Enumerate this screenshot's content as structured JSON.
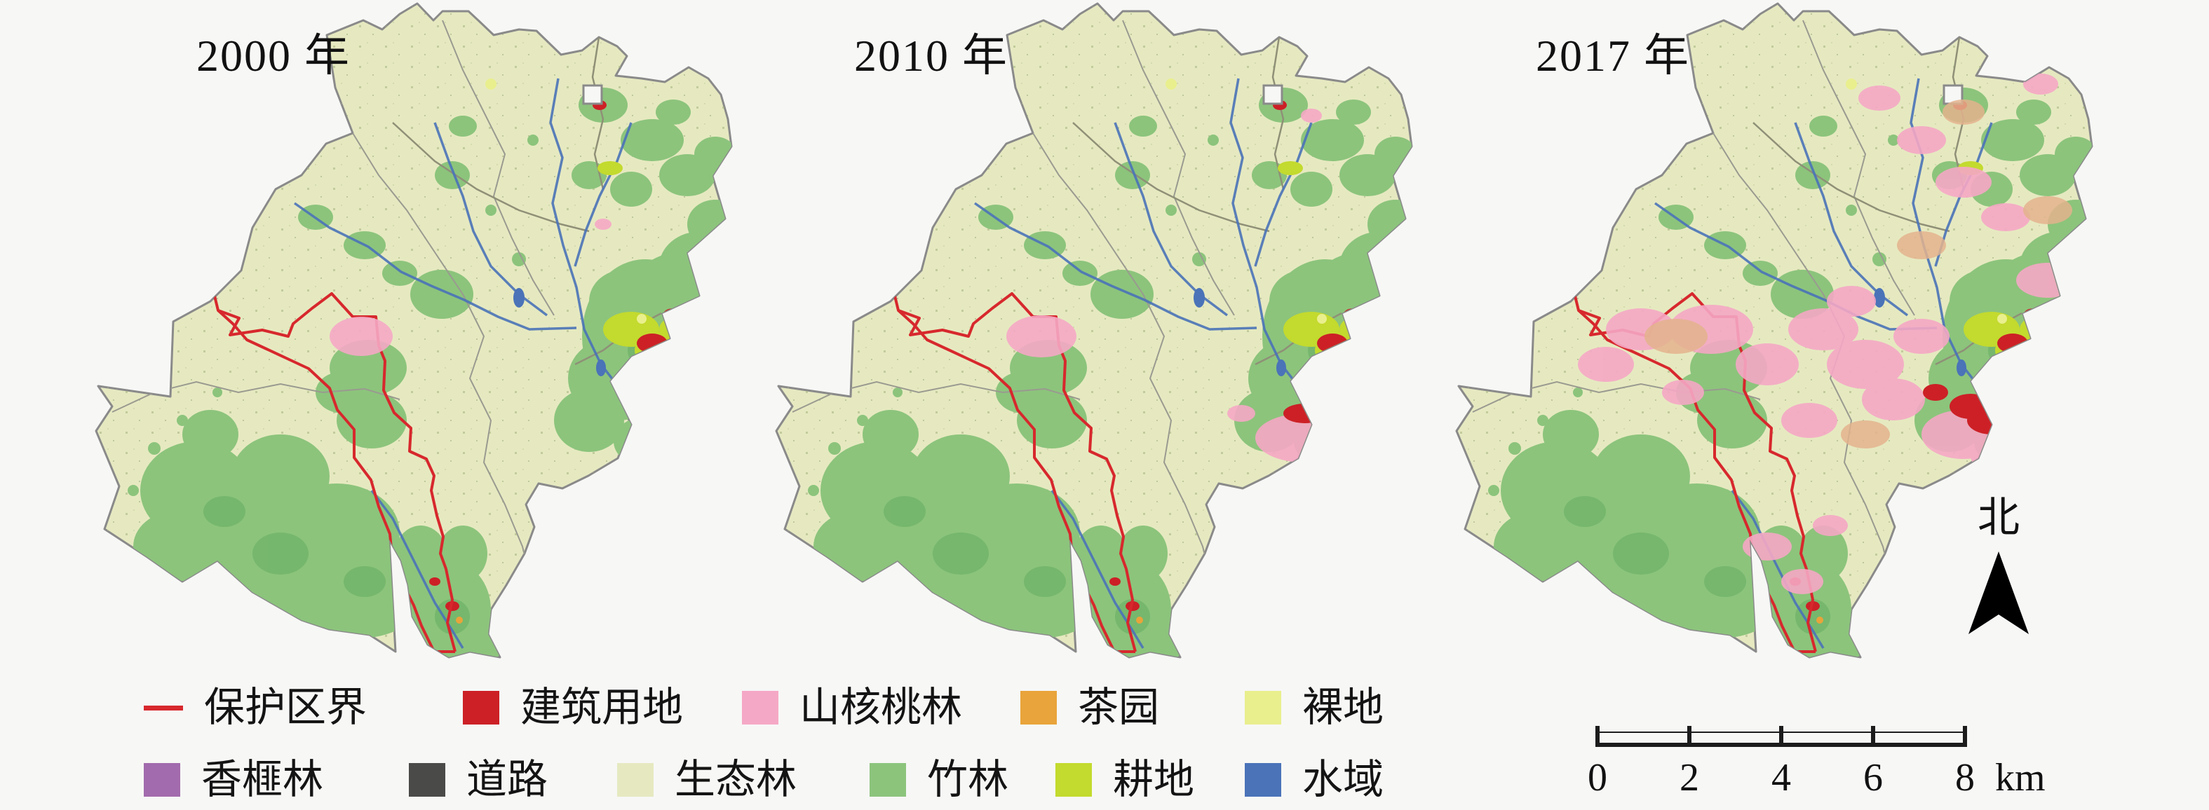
{
  "figure": {
    "kind": "land-use change maps, three dates side by side",
    "background": "#f7f7f6"
  },
  "maps": [
    {
      "year_label": "2000 年"
    },
    {
      "year_label": "2010 年"
    },
    {
      "year_label": "2017 年"
    }
  ],
  "legend": {
    "rows": [
      {
        "items": [
          {
            "label": "保护区界",
            "color": "#d7282d",
            "type": "line"
          },
          {
            "label": "建筑用地",
            "color": "#cc2026",
            "type": "fill"
          },
          {
            "label": "山核桃林",
            "color": "#f5a8c5",
            "type": "fill"
          },
          {
            "label": "茶园",
            "color": "#e9a43b",
            "type": "fill"
          },
          {
            "label": "裸地",
            "color": "#e9ef8d",
            "type": "fill"
          }
        ]
      },
      {
        "items": [
          {
            "label": "香榧林",
            "color": "#a26bad",
            "type": "fill"
          },
          {
            "label": "道路",
            "color": "#4a4a48",
            "type": "fill"
          },
          {
            "label": "生态林",
            "color": "#e6e9c0",
            "type": "fill"
          },
          {
            "label": "竹林",
            "color": "#8cc47c",
            "type": "fill"
          },
          {
            "label": "耕地",
            "color": "#c3da2e",
            "type": "fill"
          },
          {
            "label": "水域",
            "color": "#4a73b8",
            "type": "fill"
          }
        ]
      }
    ]
  },
  "north": {
    "label": "北"
  },
  "scale": {
    "ticks": [
      "0",
      "2",
      "4",
      "6",
      "8"
    ],
    "unit": "km"
  },
  "map_colors": {
    "ecological_forest": "#e6e9c0",
    "bamboo_forest": "#8cc47c",
    "water": "#4a73b8",
    "construction": "#cc2026",
    "hickory": "#f5a8c5",
    "tea": "#e9a43b",
    "bare": "#e9ef8d",
    "torreya": "#a26bad",
    "cropland": "#c3da2e",
    "road": "#4a4a48",
    "reserve_boundary": "#d7282d",
    "outline": "#8a8a8a"
  }
}
